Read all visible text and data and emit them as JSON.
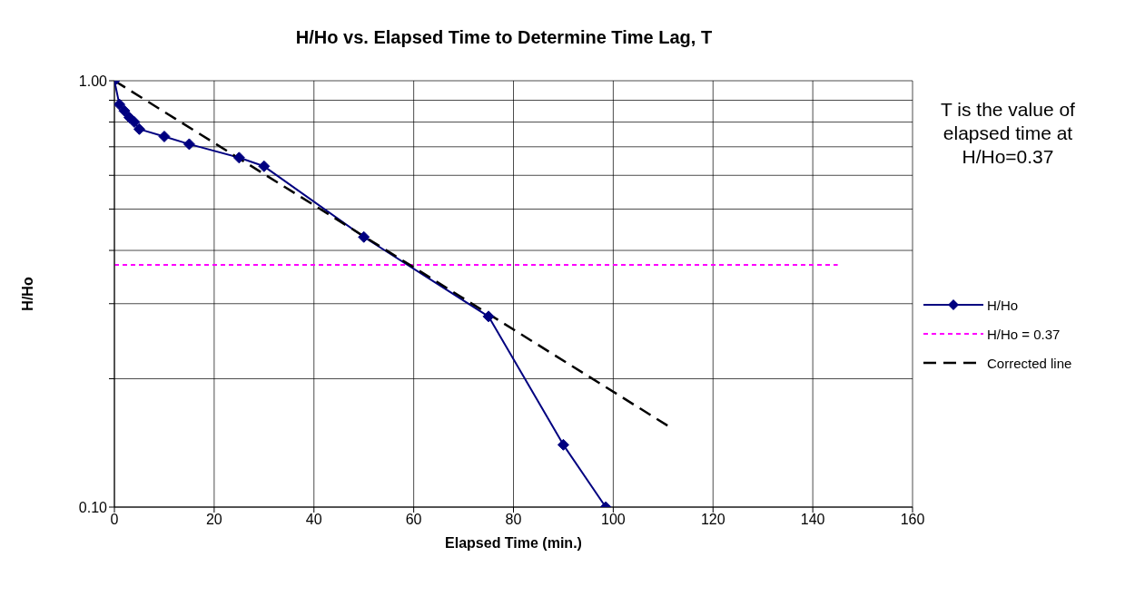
{
  "chart_data": {
    "type": "line",
    "title": "H/Ho vs. Elapsed Time to Determine Time Lag, T",
    "xlabel": "Elapsed Time (min.)",
    "ylabel": "H/Ho",
    "log": "y",
    "grid": true,
    "legend": "right",
    "xlim": [
      0,
      160
    ],
    "xticks": [
      0,
      20,
      40,
      60,
      80,
      100,
      120,
      140,
      160
    ],
    "ylim": [
      0.1,
      1
    ],
    "yticks": [
      {
        "value": 0.1,
        "label": "0.10"
      },
      {
        "value": 0.2,
        "label": null
      },
      {
        "value": 0.3,
        "label": null
      },
      {
        "value": 0.4,
        "label": null
      },
      {
        "value": 0.5,
        "label": null
      },
      {
        "value": 0.6,
        "label": null
      },
      {
        "value": 0.7,
        "label": null
      },
      {
        "value": 0.8,
        "label": null
      },
      {
        "value": 0.9,
        "label": null
      },
      {
        "value": 1,
        "label": "1.00"
      }
    ],
    "series": [
      {
        "name": "H/Ho",
        "color": "#000080",
        "marker": "diamond",
        "line_style": "solid",
        "x": [
          0,
          1,
          2,
          3,
          4,
          5,
          10,
          15,
          25,
          30,
          50,
          75,
          90,
          98.5
        ],
        "values": [
          1.0,
          0.88,
          0.85,
          0.82,
          0.8,
          0.77,
          0.74,
          0.71,
          0.66,
          0.63,
          0.43,
          0.28,
          0.14,
          0.1
        ]
      },
      {
        "name": "H/Ho = 0.37",
        "color": "#ff00ff",
        "marker": "none",
        "line_style": "dotted",
        "x": [
          0,
          145
        ],
        "values": [
          0.37,
          0.37
        ]
      },
      {
        "name": "Corrected line",
        "color": "#000000",
        "marker": "none",
        "line_style": "dashed",
        "x": [
          0,
          111
        ],
        "values": [
          1.0,
          0.155
        ]
      }
    ],
    "annotations": [
      "T is the value of elapsed time at H/Ho=0.37"
    ]
  }
}
